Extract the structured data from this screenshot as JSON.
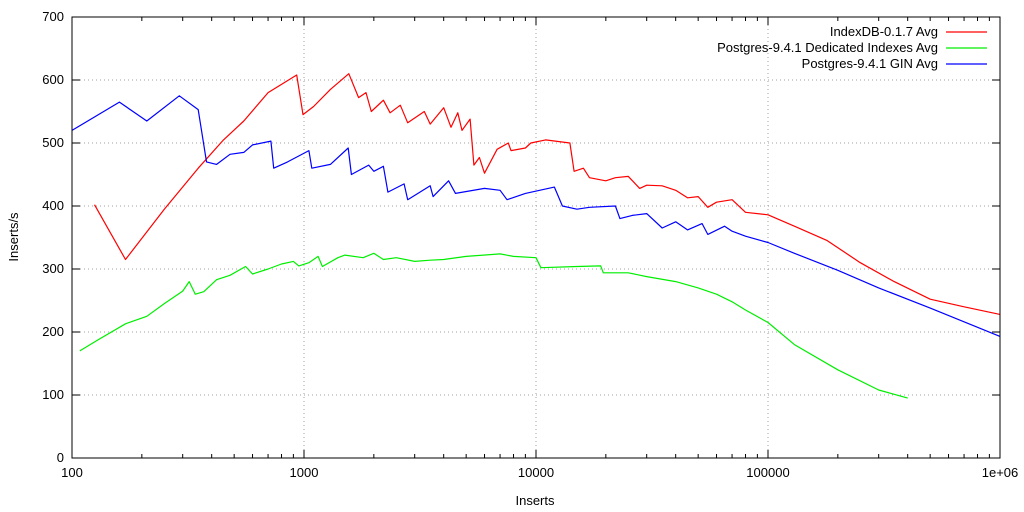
{
  "chart_data": {
    "type": "line",
    "title": "",
    "xlabel": "Inserts",
    "ylabel": "Inserts/s",
    "xscale": "log",
    "xlim": [
      100,
      1000000
    ],
    "ylim": [
      0,
      700
    ],
    "grid": true,
    "legend_position": "top-right",
    "x_ticks": [
      {
        "value": 100,
        "label": "100"
      },
      {
        "value": 1000,
        "label": "1000"
      },
      {
        "value": 10000,
        "label": "10000"
      },
      {
        "value": 100000,
        "label": "100000"
      },
      {
        "value": 1000000,
        "label": "1e+06"
      }
    ],
    "y_ticks": [
      {
        "value": 0,
        "label": "0"
      },
      {
        "value": 100,
        "label": "100"
      },
      {
        "value": 200,
        "label": "200"
      },
      {
        "value": 300,
        "label": "300"
      },
      {
        "value": 400,
        "label": "400"
      },
      {
        "value": 500,
        "label": "500"
      },
      {
        "value": 600,
        "label": "600"
      },
      {
        "value": 700,
        "label": "700"
      }
    ],
    "series": [
      {
        "name": "IndexDB-0.1.7 Avg",
        "color": "#ff0000",
        "points": [
          [
            125,
            402
          ],
          [
            170,
            315
          ],
          [
            250,
            395
          ],
          [
            350,
            460
          ],
          [
            450,
            505
          ],
          [
            550,
            535
          ],
          [
            700,
            580
          ],
          [
            930,
            608
          ],
          [
            990,
            545
          ],
          [
            1100,
            558
          ],
          [
            1300,
            585
          ],
          [
            1560,
            610
          ],
          [
            1720,
            572
          ],
          [
            1850,
            580
          ],
          [
            1950,
            550
          ],
          [
            2200,
            568
          ],
          [
            2350,
            548
          ],
          [
            2600,
            560
          ],
          [
            2800,
            532
          ],
          [
            3300,
            550
          ],
          [
            3500,
            530
          ],
          [
            4000,
            556
          ],
          [
            4300,
            525
          ],
          [
            4600,
            548
          ],
          [
            4800,
            520
          ],
          [
            5200,
            538
          ],
          [
            5400,
            465
          ],
          [
            5700,
            477
          ],
          [
            6000,
            452
          ],
          [
            6800,
            490
          ],
          [
            7600,
            500
          ],
          [
            7800,
            488
          ],
          [
            9000,
            492
          ],
          [
            9500,
            500
          ],
          [
            11000,
            505
          ],
          [
            14000,
            500
          ],
          [
            14600,
            455
          ],
          [
            16000,
            460
          ],
          [
            17000,
            445
          ],
          [
            20000,
            440
          ],
          [
            22000,
            445
          ],
          [
            25000,
            447
          ],
          [
            28000,
            428
          ],
          [
            30000,
            433
          ],
          [
            35000,
            432
          ],
          [
            40000,
            425
          ],
          [
            45000,
            413
          ],
          [
            50000,
            415
          ],
          [
            55000,
            398
          ],
          [
            60000,
            406
          ],
          [
            70000,
            410
          ],
          [
            80000,
            390
          ],
          [
            100000,
            386
          ],
          [
            130000,
            368
          ],
          [
            180000,
            345
          ],
          [
            250000,
            310
          ],
          [
            350000,
            280
          ],
          [
            500000,
            252
          ],
          [
            700000,
            240
          ],
          [
            1000000,
            228
          ]
        ]
      },
      {
        "name": "Postgres-9.4.1 Dedicated Indexes Avg",
        "color": "#00ee00",
        "points": [
          [
            108,
            170
          ],
          [
            130,
            188
          ],
          [
            170,
            213
          ],
          [
            210,
            225
          ],
          [
            250,
            245
          ],
          [
            300,
            265
          ],
          [
            320,
            280
          ],
          [
            340,
            260
          ],
          [
            370,
            264
          ],
          [
            420,
            283
          ],
          [
            480,
            290
          ],
          [
            560,
            304
          ],
          [
            600,
            292
          ],
          [
            700,
            300
          ],
          [
            800,
            308
          ],
          [
            900,
            312
          ],
          [
            950,
            305
          ],
          [
            1050,
            310
          ],
          [
            1150,
            320
          ],
          [
            1200,
            304
          ],
          [
            1400,
            318
          ],
          [
            1500,
            322
          ],
          [
            1800,
            318
          ],
          [
            2000,
            325
          ],
          [
            2200,
            315
          ],
          [
            2500,
            318
          ],
          [
            3000,
            312
          ],
          [
            3500,
            314
          ],
          [
            4000,
            315
          ],
          [
            5000,
            320
          ],
          [
            7000,
            324
          ],
          [
            8000,
            320
          ],
          [
            10000,
            318
          ],
          [
            10500,
            302
          ],
          [
            15000,
            304
          ],
          [
            19000,
            305
          ],
          [
            19500,
            294
          ],
          [
            25000,
            294
          ],
          [
            30000,
            288
          ],
          [
            40000,
            280
          ],
          [
            50000,
            270
          ],
          [
            60000,
            260
          ],
          [
            70000,
            248
          ],
          [
            80000,
            235
          ],
          [
            100000,
            215
          ],
          [
            130000,
            180
          ],
          [
            200000,
            140
          ],
          [
            300000,
            108
          ],
          [
            400000,
            95
          ]
        ]
      },
      {
        "name": "Postgres-9.4.1 GIN Avg",
        "color": "#0000ff",
        "points": [
          [
            100,
            520
          ],
          [
            160,
            565
          ],
          [
            210,
            535
          ],
          [
            290,
            575
          ],
          [
            350,
            553
          ],
          [
            380,
            470
          ],
          [
            420,
            466
          ],
          [
            480,
            482
          ],
          [
            550,
            485
          ],
          [
            600,
            497
          ],
          [
            720,
            503
          ],
          [
            740,
            460
          ],
          [
            850,
            470
          ],
          [
            1050,
            488
          ],
          [
            1080,
            460
          ],
          [
            1300,
            466
          ],
          [
            1550,
            492
          ],
          [
            1600,
            450
          ],
          [
            1900,
            465
          ],
          [
            2000,
            455
          ],
          [
            2200,
            463
          ],
          [
            2300,
            422
          ],
          [
            2700,
            435
          ],
          [
            2800,
            410
          ],
          [
            3500,
            432
          ],
          [
            3600,
            415
          ],
          [
            4200,
            440
          ],
          [
            4500,
            420
          ],
          [
            6000,
            428
          ],
          [
            7000,
            425
          ],
          [
            7500,
            410
          ],
          [
            9000,
            420
          ],
          [
            12000,
            430
          ],
          [
            13000,
            400
          ],
          [
            15000,
            395
          ],
          [
            17000,
            398
          ],
          [
            22000,
            400
          ],
          [
            23000,
            380
          ],
          [
            26000,
            385
          ],
          [
            30000,
            388
          ],
          [
            35000,
            365
          ],
          [
            40000,
            375
          ],
          [
            45000,
            362
          ],
          [
            52000,
            372
          ],
          [
            55000,
            355
          ],
          [
            65000,
            368
          ],
          [
            70000,
            360
          ],
          [
            80000,
            352
          ],
          [
            100000,
            342
          ],
          [
            130000,
            325
          ],
          [
            200000,
            298
          ],
          [
            300000,
            270
          ],
          [
            500000,
            238
          ],
          [
            1000000,
            193
          ]
        ]
      }
    ]
  }
}
